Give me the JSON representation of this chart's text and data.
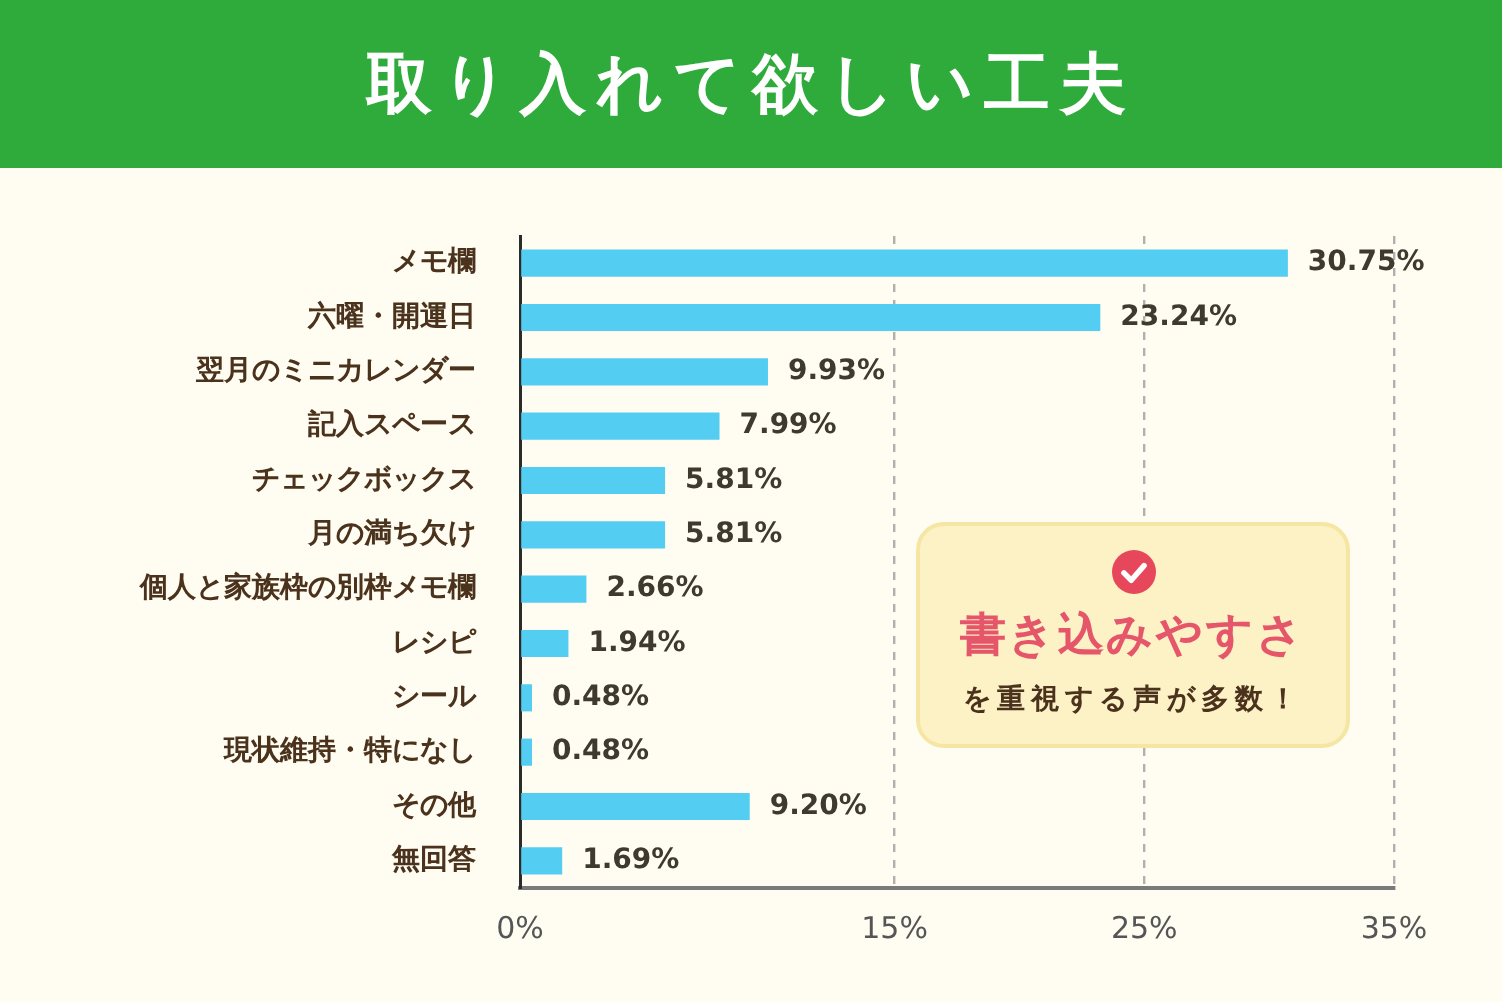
{
  "chart_data": {
    "type": "bar",
    "orientation": "horizontal",
    "title": "取り入れて欲しい工夫",
    "categories": [
      "メモ欄",
      "六曜・開運日",
      "翌月のミニカレンダー",
      "記入スペース",
      "チェックボックス",
      "月の満ち欠け",
      "個人と家族枠の別枠メモ欄",
      "レシピ",
      "シール",
      "現状維持・特になし",
      "その他",
      "無回答"
    ],
    "values": [
      30.75,
      23.24,
      9.93,
      7.99,
      5.81,
      5.81,
      2.66,
      1.94,
      0.48,
      0.48,
      9.2,
      1.69
    ],
    "value_labels": [
      "30.75%",
      "23.24%",
      "9.93%",
      "7.99%",
      "5.81%",
      "5.81%",
      "2.66%",
      "1.94%",
      "0.48%",
      "0.48%",
      "9.20%",
      "1.69%"
    ],
    "color": "#53cdf2",
    "xlim": [
      0,
      35
    ],
    "xticks": [
      {
        "value": 0,
        "label": "0%"
      },
      {
        "value": 15,
        "label": "15%"
      },
      {
        "value": 25,
        "label": "25%"
      },
      {
        "value": 35,
        "label": "35%"
      }
    ],
    "grid": "x",
    "annotations": [
      "書き込みやすさ",
      "を重視する声が多数！"
    ]
  }
}
